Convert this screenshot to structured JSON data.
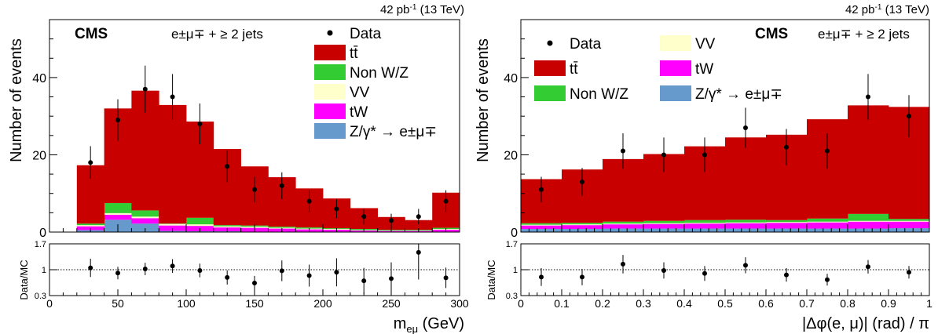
{
  "colors": {
    "ttbar": "#c80000",
    "nonwz": "#33cc33",
    "vv": "#ffffcc",
    "tw": "#ff00ff",
    "dy": "#6699cc",
    "data": "#000000"
  },
  "chart_data": [
    {
      "type": "bar",
      "stacked": true,
      "lumi_label": "42 pb",
      "lumi_sup": "-1",
      "energy_label": " (13 TeV)",
      "cms_label": "CMS",
      "selection_label": "e±μ∓ + ≥ 2 jets",
      "xlabel": "m",
      "xlabel_sub": "eμ",
      "xlabel_unit": " (GeV)",
      "ylabel": "Number of events",
      "ratio_ylabel": "Data/MC",
      "xlim": [
        0,
        300
      ],
      "ylim": [
        0,
        55
      ],
      "ratio_ylim": [
        0.3,
        1.7
      ],
      "x_ticks": [
        "0",
        "50",
        "100",
        "150",
        "200",
        "250",
        "300"
      ],
      "y_ticks": [
        "0",
        "20",
        "40"
      ],
      "ratio_y_ticks": [
        "0.3",
        "1",
        "1.7"
      ],
      "legend_position": "top-right",
      "legend": [
        "Data",
        "tt̄",
        "Non W/Z",
        "VV",
        "tW",
        "Z/γ* → e±μ∓"
      ],
      "bin_edges": [
        20,
        40,
        60,
        80,
        100,
        120,
        140,
        160,
        180,
        200,
        220,
        240,
        260,
        280,
        300
      ],
      "series": [
        {
          "name": "Z/γ* → e±μ∓",
          "values": [
            0.5,
            3.2,
            2.2,
            0.3,
            0.2,
            0.2,
            0.1,
            0.1,
            0.1,
            0.1,
            0.0,
            0.0,
            0.0,
            0.0
          ]
        },
        {
          "name": "tW",
          "values": [
            1.0,
            1.3,
            1.4,
            1.4,
            1.4,
            1.0,
            1.0,
            0.8,
            0.6,
            0.5,
            0.4,
            0.3,
            0.3,
            0.6
          ]
        },
        {
          "name": "VV",
          "values": [
            0.3,
            0.4,
            0.4,
            0.4,
            0.4,
            0.3,
            0.3,
            0.2,
            0.2,
            0.2,
            0.1,
            0.1,
            0.1,
            0.2
          ]
        },
        {
          "name": "Non W/Z",
          "values": [
            0.4,
            2.6,
            1.6,
            0.1,
            1.7,
            0.3,
            0.3,
            0.3,
            0.3,
            0.2,
            0.3,
            0.2,
            0.2,
            0.3
          ]
        },
        {
          "name": "tt̄",
          "values": [
            15.1,
            24.5,
            31.0,
            30.7,
            24.9,
            19.7,
            15.3,
            12.8,
            10.1,
            7.7,
            5.4,
            3.3,
            2.5,
            9.1
          ]
        }
      ],
      "data_points": {
        "x": [
          30,
          50,
          70,
          90,
          110,
          130,
          150,
          170,
          190,
          210,
          230,
          250,
          270,
          290
        ],
        "y": [
          18,
          29,
          37,
          35,
          28,
          17,
          11,
          12,
          8,
          6,
          4,
          3,
          4,
          8
        ]
      },
      "ratio": [
        1.05,
        0.91,
        1.02,
        1.1,
        0.98,
        0.79,
        0.64,
        0.97,
        0.84,
        0.93,
        0.7,
        0.76,
        1.47,
        0.78
      ]
    },
    {
      "type": "bar",
      "stacked": true,
      "lumi_label": "42 pb",
      "lumi_sup": "-1",
      "energy_label": " (13 TeV)",
      "cms_label": "CMS",
      "selection_label": "e±μ∓ + ≥ 2 jets",
      "xlabel": "|Δφ(e, μ)| (rad) / π",
      "ylabel": "Number of events",
      "ratio_ylabel": "Data/MC",
      "xlim": [
        0,
        1
      ],
      "ylim": [
        0,
        55
      ],
      "ratio_ylim": [
        0.3,
        1.7
      ],
      "x_ticks": [
        "0",
        "0.1",
        "0.2",
        "0.3",
        "0.4",
        "0.5",
        "0.6",
        "0.7",
        "0.8",
        "0.9",
        "1"
      ],
      "y_ticks": [
        "0",
        "20",
        "40"
      ],
      "ratio_y_ticks": [
        "0.3",
        "1",
        "1.7"
      ],
      "legend_position": "top-left",
      "legend": [
        "Data",
        "tt̄",
        "Non W/Z",
        "VV",
        "tW",
        "Z/γ* → e±μ∓"
      ],
      "bin_edges": [
        0,
        0.1,
        0.2,
        0.3,
        0.4,
        0.5,
        0.6,
        0.7,
        0.8,
        0.9,
        1.0
      ],
      "series": [
        {
          "name": "Z/γ* → e±μ∓",
          "values": [
            0.8,
            0.8,
            0.9,
            0.9,
            0.9,
            0.9,
            0.9,
            0.9,
            0.9,
            1.0
          ]
        },
        {
          "name": "tW",
          "values": [
            0.9,
            1.0,
            1.1,
            1.2,
            1.3,
            1.4,
            1.5,
            1.6,
            1.8,
            1.7
          ]
        },
        {
          "name": "VV",
          "values": [
            0.2,
            0.2,
            0.2,
            0.2,
            0.2,
            0.2,
            0.2,
            0.2,
            0.2,
            0.2
          ]
        },
        {
          "name": "Non W/Z",
          "values": [
            0.4,
            0.4,
            0.5,
            0.6,
            0.7,
            0.7,
            0.5,
            0.8,
            1.8,
            0.5
          ]
        },
        {
          "name": "tt̄",
          "values": [
            11.4,
            13.8,
            16.2,
            17.3,
            19.1,
            21.3,
            22.1,
            25.7,
            28.1,
            29.0
          ]
        }
      ],
      "data_points": {
        "x": [
          0.05,
          0.15,
          0.25,
          0.35,
          0.45,
          0.55,
          0.65,
          0.75,
          0.85,
          0.95
        ],
        "y": [
          11,
          13,
          21,
          20,
          20,
          27,
          22,
          21,
          35,
          30
        ]
      },
      "ratio": [
        0.8,
        0.8,
        1.15,
        0.98,
        0.9,
        1.12,
        0.86,
        0.73,
        1.08,
        0.93
      ]
    }
  ]
}
